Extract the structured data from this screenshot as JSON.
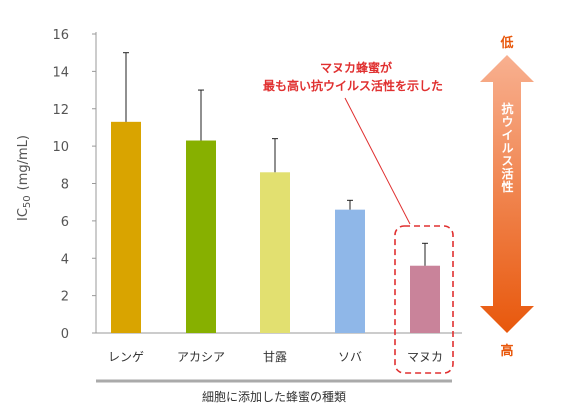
{
  "chart_data": {
    "type": "bar",
    "categories": [
      "レンゲ",
      "アカシア",
      "甘露",
      "ソバ",
      "マヌカ"
    ],
    "values": [
      11.3,
      10.3,
      8.6,
      6.6,
      3.6
    ],
    "errors": [
      3.7,
      2.7,
      1.8,
      0.5,
      1.2
    ],
    "colors": [
      "#d9a400",
      "#87b000",
      "#e2e070",
      "#8fb7e8",
      "#c9839a"
    ],
    "ylim": [
      0,
      16
    ],
    "yticks": [
      0,
      2,
      4,
      6,
      8,
      10,
      12,
      14,
      16
    ],
    "ylabel": "IC",
    "ylabel_sub": "50",
    "ylabel_unit": "(mg/mL)",
    "xlabel": "細胞に添加した蜂蜜の種類",
    "annotation": [
      "マヌカ蜂蜜が",
      "最も高い抗ウイルス活性を示した"
    ],
    "side_arrow": {
      "top": "低",
      "bottom": "高",
      "label": "抗ウイルス活性",
      "color_top": "#f8b090",
      "color_bottom": "#e8580c"
    },
    "accent": "#e03030"
  }
}
